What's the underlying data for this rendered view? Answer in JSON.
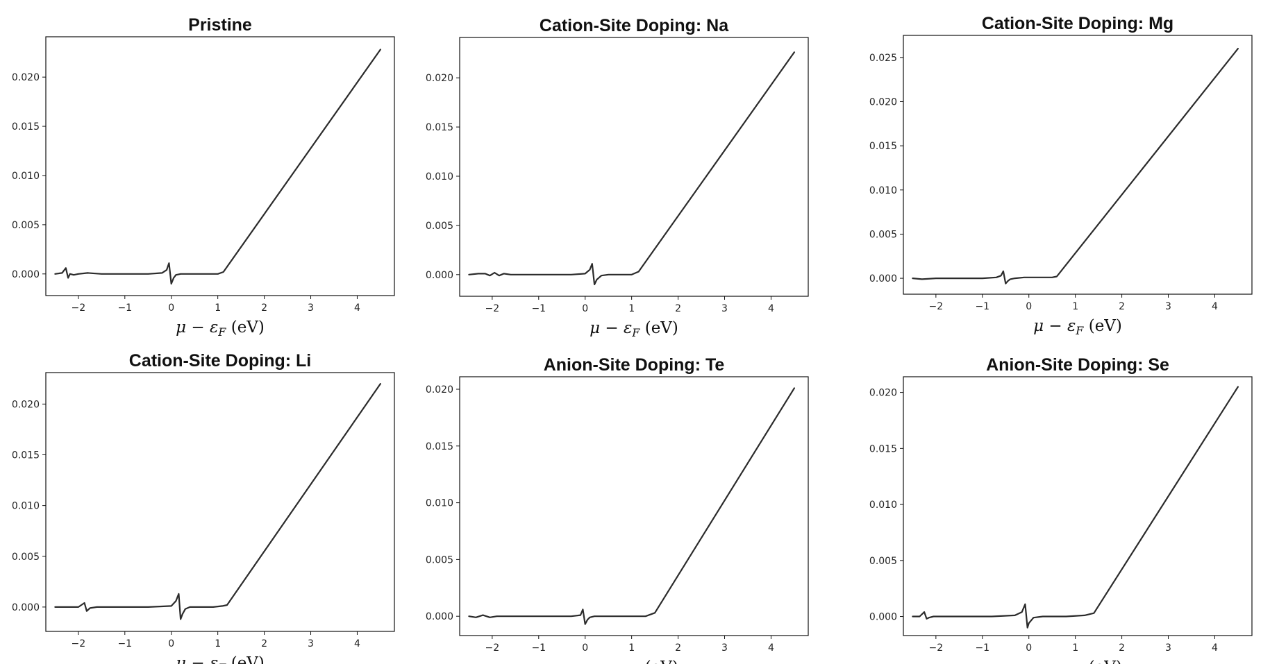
{
  "chart_data": [
    {
      "type": "line",
      "title": "Pristine",
      "xlabel": "μ − ε_F (eV)",
      "xlim": [
        -2.7,
        4.8
      ],
      "ylim": [
        -0.0022,
        0.0241
      ],
      "xticks": [
        -2,
        -1,
        0,
        1,
        2,
        3,
        4
      ],
      "xtick_labels": [
        "−2",
        "−1",
        "0",
        "1",
        "2",
        "3",
        "4"
      ],
      "yticks": [
        0,
        0.005,
        0.01,
        0.015,
        0.02
      ],
      "ytick_labels": [
        "0.000",
        "0.005",
        "0.010",
        "0.015",
        "0.020"
      ],
      "series": [
        {
          "x": [
            -2.5,
            -2.35,
            -2.27,
            -2.22,
            -2.18,
            -2.1,
            -2.0,
            -1.8,
            -1.5,
            -1.0,
            -0.5,
            -0.2,
            -0.1,
            -0.05,
            0.0,
            0.05,
            0.1,
            0.2,
            0.4,
            0.8,
            1.0,
            1.12,
            4.5
          ],
          "y": [
            0.0,
            0.0001,
            0.0006,
            -0.0004,
            0.0,
            -0.0001,
            0.0,
            0.0001,
            0.0,
            0.0,
            0.0,
            0.0001,
            0.0004,
            0.0011,
            -0.001,
            -0.0004,
            -0.0001,
            0.0,
            0.0,
            0.0,
            0.0,
            0.0002,
            0.0228
          ]
        }
      ]
    },
    {
      "type": "line",
      "title": "Cation-Site Doping: Na",
      "xlabel": "μ − ε_F (eV)",
      "xlim": [
        -2.7,
        4.8
      ],
      "ylim": [
        -0.0022,
        0.0241
      ],
      "xticks": [
        -2,
        -1,
        0,
        1,
        2,
        3,
        4
      ],
      "xtick_labels": [
        "−2",
        "−1",
        "0",
        "1",
        "2",
        "3",
        "4"
      ],
      "yticks": [
        0,
        0.005,
        0.01,
        0.015,
        0.02
      ],
      "ytick_labels": [
        "0.000",
        "0.005",
        "0.010",
        "0.015",
        "0.020"
      ],
      "series": [
        {
          "x": [
            -2.5,
            -2.3,
            -2.15,
            -2.05,
            -1.95,
            -1.85,
            -1.75,
            -1.6,
            -1.3,
            -0.8,
            -0.3,
            0.0,
            0.1,
            0.15,
            0.2,
            0.25,
            0.35,
            0.5,
            0.8,
            1.0,
            1.15,
            4.5
          ],
          "y": [
            0.0,
            0.0001,
            0.0001,
            -0.0001,
            0.0002,
            -0.0001,
            0.0001,
            0.0,
            0.0,
            0.0,
            0.0,
            0.0001,
            0.0005,
            0.0011,
            -0.001,
            -0.0005,
            -0.0001,
            0.0,
            0.0,
            0.0,
            0.0003,
            0.0226
          ]
        }
      ]
    },
    {
      "type": "line",
      "title": "Cation-Site Doping: Mg",
      "xlabel": "μ − ε_F (eV)",
      "xlim": [
        -2.7,
        4.8
      ],
      "ylim": [
        -0.0018,
        0.0275
      ],
      "xticks": [
        -2,
        -1,
        0,
        1,
        2,
        3,
        4
      ],
      "xtick_labels": [
        "−2",
        "−1",
        "0",
        "1",
        "2",
        "3",
        "4"
      ],
      "yticks": [
        0,
        0.005,
        0.01,
        0.015,
        0.02,
        0.025
      ],
      "ytick_labels": [
        "0.000",
        "0.005",
        "0.010",
        "0.015",
        "0.020",
        "0.025"
      ],
      "series": [
        {
          "x": [
            -2.5,
            -2.3,
            -2.0,
            -1.5,
            -1.0,
            -0.7,
            -0.6,
            -0.55,
            -0.5,
            -0.45,
            -0.4,
            -0.3,
            -0.1,
            0.2,
            0.5,
            0.6,
            4.5
          ],
          "y": [
            0.0,
            -0.0001,
            0.0,
            0.0,
            0.0,
            0.0001,
            0.0003,
            0.0008,
            -0.0006,
            -0.0003,
            -0.0001,
            0.0,
            0.0001,
            0.0001,
            0.0001,
            0.0002,
            0.026
          ]
        }
      ]
    },
    {
      "type": "line",
      "title": "Cation-Site Doping: Li",
      "xlabel": "μ − ε_F (eV)",
      "xlim": [
        -2.7,
        4.8
      ],
      "ylim": [
        -0.0024,
        0.0231
      ],
      "xticks": [
        -2,
        -1,
        0,
        1,
        2,
        3,
        4
      ],
      "xtick_labels": [
        "−2",
        "−1",
        "0",
        "1",
        "2",
        "3",
        "4"
      ],
      "yticks": [
        0,
        0.005,
        0.01,
        0.015,
        0.02
      ],
      "ytick_labels": [
        "0.000",
        "0.005",
        "0.010",
        "0.015",
        "0.020"
      ],
      "series": [
        {
          "x": [
            -2.5,
            -2.2,
            -2.0,
            -1.87,
            -1.82,
            -1.75,
            -1.6,
            -1.3,
            -1.0,
            -0.5,
            0.0,
            0.1,
            0.16,
            0.2,
            0.24,
            0.3,
            0.4,
            0.6,
            0.9,
            1.1,
            1.2,
            4.5
          ],
          "y": [
            0.0,
            0.0,
            0.0,
            0.0004,
            -0.0004,
            -0.0001,
            0.0,
            0.0,
            0.0,
            0.0,
            0.0001,
            0.0006,
            0.0013,
            -0.0012,
            -0.0007,
            -0.0002,
            0.0,
            0.0,
            0.0,
            0.0001,
            0.0002,
            0.022
          ]
        }
      ]
    },
    {
      "type": "line",
      "title": "Anion-Site Doping: Te",
      "xlabel": "μ − ε_F (eV)",
      "xlim": [
        -2.7,
        4.8
      ],
      "ylim": [
        -0.0017,
        0.0211
      ],
      "xticks": [
        -2,
        -1,
        0,
        1,
        2,
        3,
        4
      ],
      "xtick_labels": [
        "−2",
        "−1",
        "0",
        "1",
        "2",
        "3",
        "4"
      ],
      "yticks": [
        0,
        0.005,
        0.01,
        0.015,
        0.02
      ],
      "ytick_labels": [
        "0.000",
        "0.005",
        "0.010",
        "0.015",
        "0.020"
      ],
      "series": [
        {
          "x": [
            -2.5,
            -2.35,
            -2.2,
            -2.05,
            -1.9,
            -1.7,
            -1.3,
            -0.8,
            -0.3,
            -0.1,
            -0.05,
            0.0,
            0.05,
            0.1,
            0.2,
            0.5,
            1.0,
            1.3,
            1.5,
            4.5
          ],
          "y": [
            0.0,
            -0.0001,
            0.0001,
            -0.0001,
            0.0,
            0.0,
            0.0,
            0.0,
            0.0,
            0.0001,
            0.0006,
            -0.0007,
            -0.0003,
            -0.0001,
            0.0,
            0.0,
            0.0,
            0.0,
            0.0003,
            0.0201
          ]
        }
      ]
    },
    {
      "type": "line",
      "title": "Anion-Site Doping: Se",
      "xlabel": "μ − ε_F (eV)",
      "xlim": [
        -2.7,
        4.8
      ],
      "ylim": [
        -0.0017,
        0.0214
      ],
      "xticks": [
        -2,
        -1,
        0,
        1,
        2,
        3,
        4
      ],
      "xtick_labels": [
        "−2",
        "−1",
        "0",
        "1",
        "2",
        "3",
        "4"
      ],
      "yticks": [
        0,
        0.005,
        0.01,
        0.015,
        0.02
      ],
      "ytick_labels": [
        "0.000",
        "0.005",
        "0.010",
        "0.015",
        "0.020"
      ],
      "series": [
        {
          "x": [
            -2.5,
            -2.35,
            -2.25,
            -2.2,
            -2.15,
            -2.05,
            -1.8,
            -1.3,
            -0.8,
            -0.3,
            -0.15,
            -0.08,
            -0.03,
            0.0,
            0.1,
            0.3,
            0.8,
            1.2,
            1.4,
            4.5
          ],
          "y": [
            0.0,
            0.0,
            0.0004,
            -0.0002,
            -0.0001,
            0.0,
            0.0,
            0.0,
            0.0,
            0.0001,
            0.0004,
            0.0011,
            -0.001,
            -0.0006,
            -0.0001,
            0.0,
            0.0,
            0.0001,
            0.0003,
            0.0205
          ]
        }
      ]
    }
  ]
}
